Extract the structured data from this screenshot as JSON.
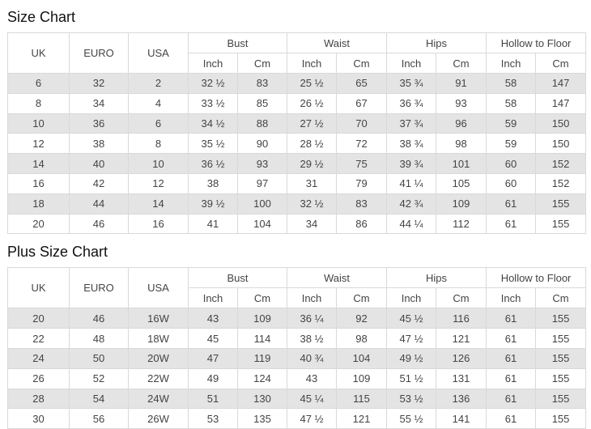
{
  "colors": {
    "row_alt_background": "#e4e4e4",
    "row_background": "#ffffff",
    "table_border": "#d9d9d9",
    "table_text": "#444444",
    "title_text": "#111111"
  },
  "size_chart": {
    "title": "Size Chart",
    "header": {
      "uk": "UK",
      "euro": "EURO",
      "usa": "USA",
      "groups": [
        "Bust",
        "Waist",
        "Hips",
        "Hollow to Floor"
      ],
      "sub_inch": "Inch",
      "sub_cm": "Cm"
    },
    "rows": [
      [
        "6",
        "32",
        "2",
        "32 ½",
        "83",
        "25 ½",
        "65",
        "35 ¾",
        "91",
        "58",
        "147"
      ],
      [
        "8",
        "34",
        "4",
        "33 ½",
        "85",
        "26 ½",
        "67",
        "36 ¾",
        "93",
        "58",
        "147"
      ],
      [
        "10",
        "36",
        "6",
        "34 ½",
        "88",
        "27 ½",
        "70",
        "37 ¾",
        "96",
        "59",
        "150"
      ],
      [
        "12",
        "38",
        "8",
        "35 ½",
        "90",
        "28 ½",
        "72",
        "38 ¾",
        "98",
        "59",
        "150"
      ],
      [
        "14",
        "40",
        "10",
        "36 ½",
        "93",
        "29 ½",
        "75",
        "39 ¾",
        "101",
        "60",
        "152"
      ],
      [
        "16",
        "42",
        "12",
        "38",
        "97",
        "31",
        "79",
        "41 ¼",
        "105",
        "60",
        "152"
      ],
      [
        "18",
        "44",
        "14",
        "39 ½",
        "100",
        "32 ½",
        "83",
        "42 ¾",
        "109",
        "61",
        "155"
      ],
      [
        "20",
        "46",
        "16",
        "41",
        "104",
        "34",
        "86",
        "44 ¼",
        "112",
        "61",
        "155"
      ]
    ]
  },
  "plus_size_chart": {
    "title": "Plus Size Chart",
    "header": {
      "uk": "UK",
      "euro": "EURO",
      "usa": "USA",
      "groups": [
        "Bust",
        "Waist",
        "Hips",
        "Hollow to Floor"
      ],
      "sub_inch": "Inch",
      "sub_cm": "Cm"
    },
    "rows": [
      [
        "20",
        "46",
        "16W",
        "43",
        "109",
        "36 ¼",
        "92",
        "45 ½",
        "116",
        "61",
        "155"
      ],
      [
        "22",
        "48",
        "18W",
        "45",
        "114",
        "38 ½",
        "98",
        "47 ½",
        "121",
        "61",
        "155"
      ],
      [
        "24",
        "50",
        "20W",
        "47",
        "119",
        "40 ¾",
        "104",
        "49 ½",
        "126",
        "61",
        "155"
      ],
      [
        "26",
        "52",
        "22W",
        "49",
        "124",
        "43",
        "109",
        "51 ½",
        "131",
        "61",
        "155"
      ],
      [
        "28",
        "54",
        "24W",
        "51",
        "130",
        "45 ¼",
        "115",
        "53 ½",
        "136",
        "61",
        "155"
      ],
      [
        "30",
        "56",
        "26W",
        "53",
        "135",
        "47 ½",
        "121",
        "55 ½",
        "141",
        "61",
        "155"
      ]
    ]
  }
}
